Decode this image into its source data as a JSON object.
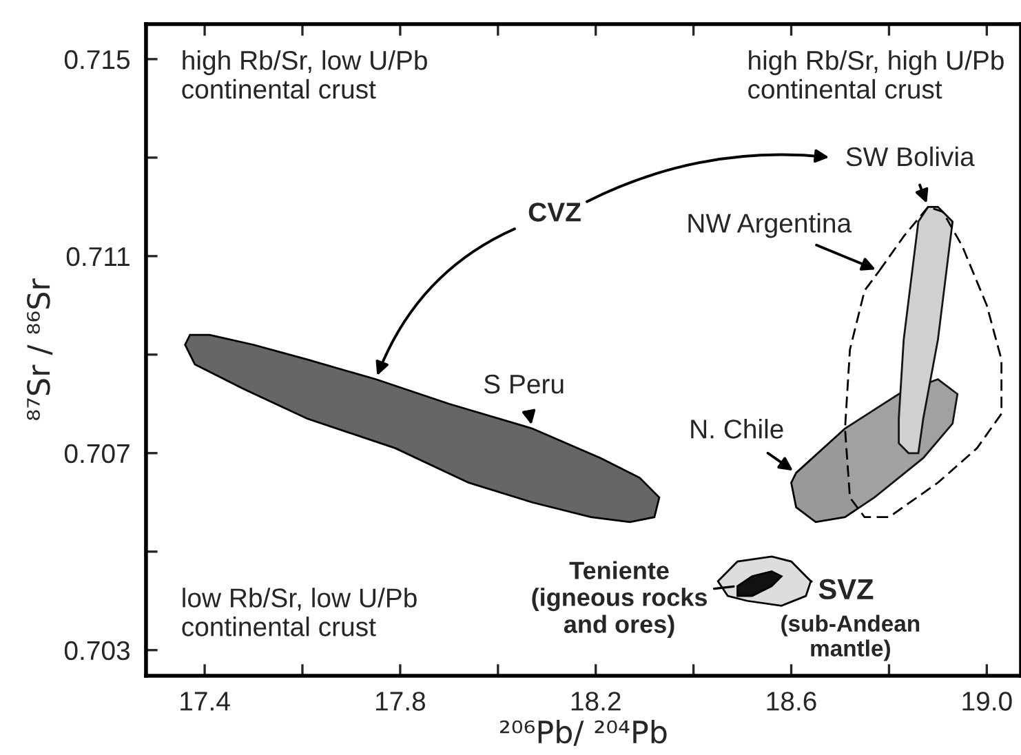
{
  "chart_data": {
    "type": "area",
    "xlabel": "²⁰⁶Pb/ ²⁰⁴Pb",
    "ylabel": "⁸⁷Sr / ⁸⁶Sr",
    "xlim": [
      17.28,
      19.07
    ],
    "ylim": [
      0.70248,
      0.71571
    ],
    "xticks": [
      17.4,
      {
        "value": 17.6,
        "label": null
      },
      17.8,
      {
        "value": 18.0,
        "label": null
      },
      18.2,
      {
        "value": 18.4,
        "label": null
      },
      18.6,
      {
        "value": 18.8,
        "label": null
      },
      {
        "value": 19.0,
        "label": "19.0"
      }
    ],
    "yticks": [
      0.715,
      {
        "value": 0.713,
        "label": null
      },
      0.711,
      {
        "value": 0.709,
        "label": null
      },
      0.707,
      {
        "value": 0.705,
        "label": null
      },
      0.703
    ],
    "series": [
      {
        "color": "#666666",
        "x": [
          17.37,
          17.41,
          17.5,
          17.61,
          17.75,
          17.9,
          18.07,
          18.21,
          18.29,
          18.33,
          18.32,
          18.27,
          18.19,
          18.07,
          17.94,
          17.79,
          17.61,
          17.48,
          17.38,
          17.36
        ],
        "values": [
          0.7094,
          0.7094,
          0.7092,
          0.7089,
          0.7085,
          0.708,
          0.7075,
          0.7069,
          0.7065,
          0.7061,
          0.7057,
          0.7056,
          0.7057,
          0.706,
          0.7064,
          0.7071,
          0.7077,
          0.7083,
          0.7088,
          0.7092
        ]
      },
      {
        "color": "#999999",
        "x": [
          18.61,
          18.71,
          18.82,
          18.9,
          18.94,
          18.93,
          18.87,
          18.77,
          18.71,
          18.65,
          18.61,
          18.6
        ],
        "values": [
          0.7066,
          0.7075,
          0.7082,
          0.7085,
          0.7082,
          0.7076,
          0.7069,
          0.7061,
          0.7057,
          0.7056,
          0.7059,
          0.7064
        ]
      },
      {
        "color": "#cccccc",
        "x": [
          18.86,
          18.88,
          18.9,
          18.93,
          18.92,
          18.9,
          18.87,
          18.86,
          18.84,
          18.82,
          18.82,
          18.83,
          18.85
        ],
        "values": [
          0.7117,
          0.712,
          0.712,
          0.7117,
          0.7109,
          0.7093,
          0.7077,
          0.707,
          0.707,
          0.7072,
          0.7077,
          0.7093,
          0.7109
        ]
      },
      {
        "color": "#ffffff",
        "line_style": "dashed",
        "x": [
          18.78,
          18.83,
          18.88,
          18.91,
          18.95,
          19.0,
          19.03,
          19.03,
          18.98,
          18.9,
          18.8,
          18.75,
          18.72,
          18.71,
          18.72,
          18.75
        ],
        "values": [
          0.7107,
          0.7114,
          0.712,
          0.7119,
          0.7112,
          0.71,
          0.7089,
          0.7078,
          0.7071,
          0.7064,
          0.7057,
          0.7057,
          0.7061,
          0.7075,
          0.7091,
          0.7103
        ]
      },
      {
        "color": "#dddddd",
        "x": [
          18.45,
          18.49,
          18.56,
          18.6,
          18.64,
          18.63,
          18.58,
          18.51,
          18.47
        ],
        "values": [
          0.7044,
          0.7048,
          0.7049,
          0.7048,
          0.7044,
          0.7041,
          0.7039,
          0.704,
          0.7041
        ]
      },
      {
        "color": "#111111",
        "x": [
          18.49,
          18.52,
          18.56,
          18.58,
          18.56,
          18.52,
          18.49
        ],
        "values": [
          0.7043,
          0.7045,
          0.7046,
          0.7045,
          0.7043,
          0.7041,
          0.7041
        ]
      }
    ],
    "annotations": [
      "high Rb/Sr, low U/Pb\ncontinental crust",
      "high Rb/Sr, high U/Pb\ncontinental crust",
      "low Rb/Sr, low U/Pb\ncontinental crust",
      {
        "text": "CVZ",
        "x": 17.75,
        "y": 0.7085
      },
      {
        "text": "SW Bolivia",
        "x": 18.88,
        "y": 0.712
      },
      {
        "text": "NW Argentina",
        "x": 18.78,
        "y": 0.7107
      },
      {
        "text": "S Peru",
        "x": 18.07,
        "y": 0.7075
      },
      {
        "text": "N. Chile",
        "x": 18.61,
        "y": 0.7066
      },
      {
        "text": "Teniente\n(igneous rocks\nand ores)",
        "x": 18.49,
        "y": 0.7043
      },
      {
        "text": "SVZ",
        "x": 18.64,
        "y": 0.7044
      },
      "(sub-Andean\nmantle)"
    ]
  }
}
